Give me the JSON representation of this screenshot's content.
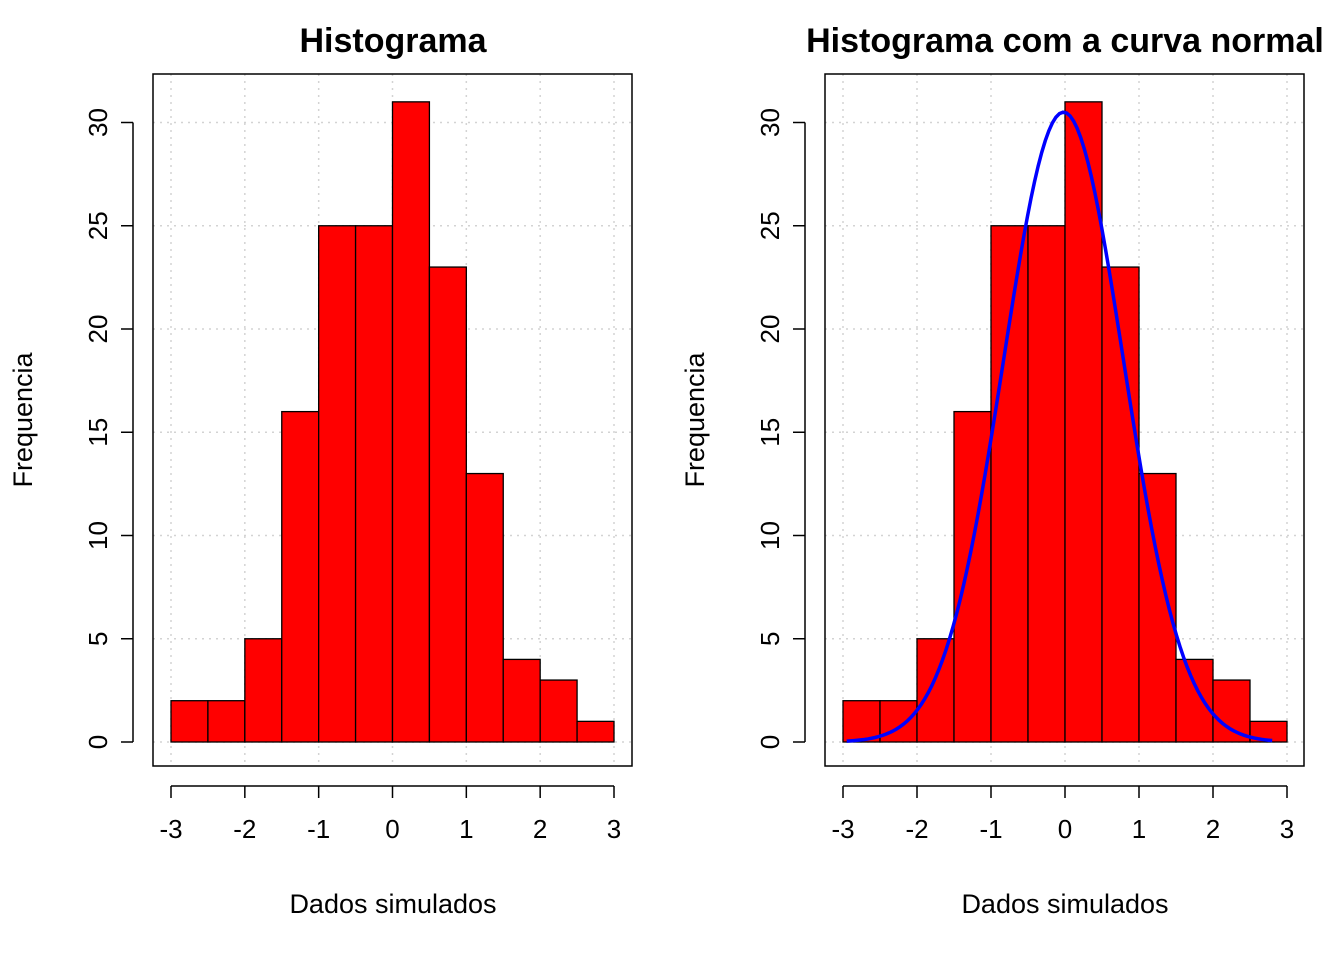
{
  "colors": {
    "bar_fill": "#ff0000",
    "bar_stroke": "#000000",
    "grid": "#d3d3d3",
    "curve": "#0000ff",
    "axis": "#000000",
    "background": "#ffffff"
  },
  "chart_data": [
    {
      "type": "bar",
      "title": "Histograma",
      "xlabel": "Dados simulados",
      "ylabel": "Frequencia",
      "bin_edges": [
        -3,
        -2.5,
        -2,
        -1.5,
        -1,
        -0.5,
        0,
        0.5,
        1,
        1.5,
        2,
        2.5,
        3
      ],
      "values": [
        2,
        2,
        5,
        16,
        25,
        25,
        31,
        23,
        13,
        4,
        3,
        1
      ],
      "xlim": [
        -3,
        3
      ],
      "ylim": [
        0,
        31
      ],
      "xticks": [
        -3,
        -2,
        -1,
        0,
        1,
        2,
        3
      ],
      "yticks": [
        0,
        5,
        10,
        15,
        20,
        25,
        30
      ],
      "grid": true
    },
    {
      "type": "bar",
      "title": "Histograma com a curva normal",
      "xlabel": "Dados simulados",
      "ylabel": "Frequencia",
      "bin_edges": [
        -3,
        -2.5,
        -2,
        -1.5,
        -1,
        -0.5,
        0,
        0.5,
        1,
        1.5,
        2,
        2.5,
        3
      ],
      "values": [
        2,
        2,
        5,
        16,
        25,
        25,
        31,
        23,
        13,
        4,
        3,
        1
      ],
      "xlim": [
        -3,
        3
      ],
      "ylim": [
        0,
        31
      ],
      "xticks": [
        -3,
        -2,
        -1,
        0,
        1,
        2,
        3
      ],
      "yticks": [
        0,
        5,
        10,
        15,
        20,
        25,
        30
      ],
      "grid": true,
      "overlay_curve": {
        "type": "line",
        "distribution": "normal",
        "x_range": [
          -2.95,
          2.8
        ],
        "peak_x": -0.02,
        "peak_y": 30.5,
        "sd": 0.81
      }
    }
  ]
}
